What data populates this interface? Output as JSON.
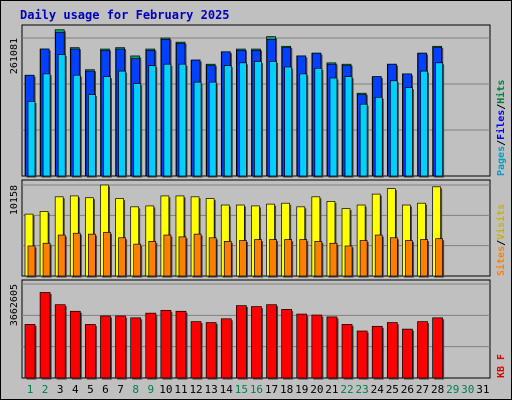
{
  "chart_data": {
    "type": "bar",
    "title": "Daily usage for February 2025",
    "days": [
      "1",
      "2",
      "3",
      "4",
      "5",
      "6",
      "7",
      "8",
      "9",
      "10",
      "11",
      "12",
      "13",
      "14",
      "15",
      "16",
      "17",
      "18",
      "19",
      "20",
      "21",
      "22",
      "23",
      "24",
      "25",
      "26",
      "27",
      "28",
      "29",
      "30",
      "31"
    ],
    "weekend_days": [
      "1",
      "2",
      "8",
      "9",
      "15",
      "16",
      "22",
      "23",
      "29",
      "30"
    ],
    "days_with_data": 28,
    "max_labels": {
      "hits_files_pages": "261081",
      "visits_sites": "10158",
      "kbytes": "3662605"
    },
    "legend": {
      "top": [
        {
          "label": "Pages",
          "color": "#00a0c8"
        },
        {
          "label": "/",
          "color": "#000000"
        },
        {
          "label": "Files",
          "color": "#0000ff"
        },
        {
          "label": "/",
          "color": "#000000"
        },
        {
          "label": "Hits",
          "color": "#008040"
        }
      ],
      "middle": [
        {
          "label": "Sites",
          "color": "#ff8000"
        },
        {
          "label": "/",
          "color": "#000000"
        },
        {
          "label": "Visits",
          "color": "#c8b400"
        }
      ],
      "bottom": [
        {
          "label": "KB F",
          "color": "#e00000"
        }
      ]
    },
    "series": {
      "hits": [
        0.73,
        0.92,
        1.06,
        0.93,
        0.77,
        0.92,
        0.93,
        0.87,
        0.92,
        1.0,
        0.97,
        0.84,
        0.81,
        0.9,
        0.92,
        0.92,
        1.01,
        0.94,
        0.87,
        0.89,
        0.82,
        0.81,
        0.6,
        0.72,
        0.81,
        0.74,
        0.89,
        0.94
      ],
      "files": [
        0.73,
        0.92,
        1.04,
        0.92,
        0.76,
        0.91,
        0.92,
        0.85,
        0.91,
        0.99,
        0.96,
        0.84,
        0.8,
        0.9,
        0.91,
        0.91,
        0.99,
        0.93,
        0.87,
        0.89,
        0.81,
        0.8,
        0.59,
        0.72,
        0.81,
        0.74,
        0.89,
        0.93
      ],
      "pages": [
        0.54,
        0.74,
        0.88,
        0.73,
        0.59,
        0.72,
        0.76,
        0.67,
        0.8,
        0.81,
        0.81,
        0.68,
        0.68,
        0.8,
        0.82,
        0.83,
        0.83,
        0.79,
        0.74,
        0.78,
        0.71,
        0.72,
        0.52,
        0.57,
        0.69,
        0.64,
        0.76,
        0.82
      ],
      "visits": [
        0.68,
        0.71,
        0.87,
        0.88,
        0.86,
        1.0,
        0.85,
        0.76,
        0.77,
        0.88,
        0.88,
        0.87,
        0.85,
        0.78,
        0.78,
        0.77,
        0.79,
        0.8,
        0.76,
        0.87,
        0.82,
        0.74,
        0.78,
        0.9,
        0.96,
        0.78,
        0.8,
        0.98
      ],
      "sites": [
        0.33,
        0.36,
        0.45,
        0.47,
        0.46,
        0.48,
        0.42,
        0.35,
        0.38,
        0.45,
        0.43,
        0.46,
        0.42,
        0.38,
        0.39,
        0.4,
        0.4,
        0.4,
        0.4,
        0.38,
        0.36,
        0.33,
        0.39,
        0.45,
        0.42,
        0.39,
        0.4,
        0.41
      ],
      "kbytes": [
        0.57,
        0.91,
        0.78,
        0.71,
        0.57,
        0.66,
        0.66,
        0.64,
        0.69,
        0.72,
        0.71,
        0.6,
        0.59,
        0.63,
        0.77,
        0.76,
        0.78,
        0.73,
        0.68,
        0.67,
        0.65,
        0.57,
        0.5,
        0.55,
        0.59,
        0.52,
        0.6,
        0.64
      ]
    }
  }
}
